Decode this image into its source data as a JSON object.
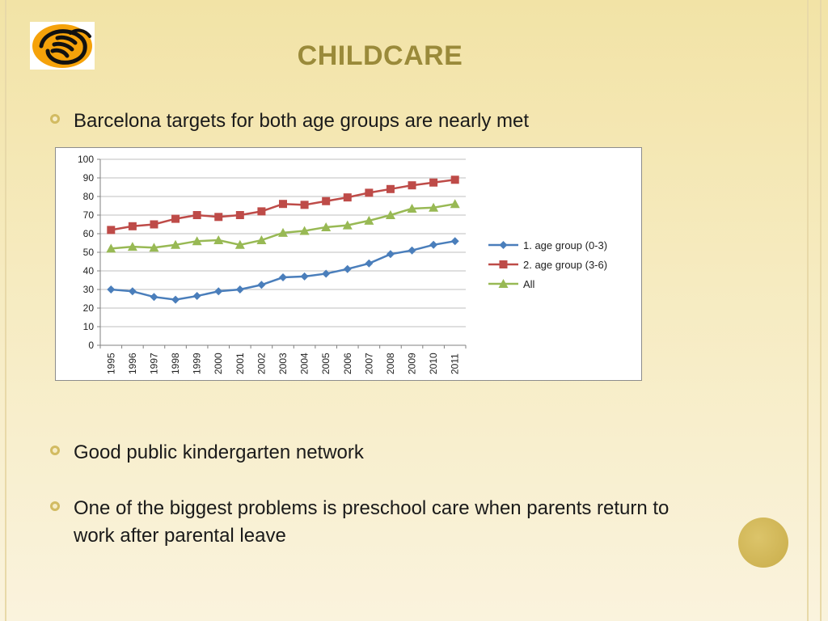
{
  "slide": {
    "title": "CHILDCARE",
    "bullets": [
      "Barcelona targets for both age groups are nearly met",
      "Good public kindergarten network",
      "One of the biggest problems is preschool care when parents return to work after parental leave"
    ]
  },
  "colors": {
    "title": "#9a8a3a",
    "bullet": "#d2bb62",
    "series1": "#4a7ebb",
    "series2": "#be4b48",
    "series3": "#98b954"
  },
  "icons": {
    "logo": "hand-logo-icon"
  },
  "chart_data": {
    "type": "line",
    "title": "",
    "xlabel": "",
    "ylabel": "",
    "ylim": [
      0,
      100
    ],
    "yticks": [
      0,
      10,
      20,
      30,
      40,
      50,
      60,
      70,
      80,
      90,
      100
    ],
    "legend_position": "right",
    "grid": true,
    "categories": [
      "1995",
      "1996",
      "1997",
      "1998",
      "1999",
      "2000",
      "2001",
      "2002",
      "2003",
      "2004",
      "2005",
      "2006",
      "2007",
      "2008",
      "2009",
      "2010",
      "2011"
    ],
    "series": [
      {
        "name": "1. age group (0-3)",
        "color": "#4a7ebb",
        "marker": "diamond",
        "values": [
          30,
          29,
          26,
          24.5,
          26.5,
          29,
          30,
          32.5,
          36.5,
          37,
          38.5,
          41,
          44,
          49,
          51,
          54,
          56
        ]
      },
      {
        "name": "2. age group (3-6)",
        "color": "#be4b48",
        "marker": "square",
        "values": [
          62,
          64,
          65,
          68,
          70,
          69,
          70,
          72,
          76,
          75.5,
          77.5,
          79.5,
          82,
          84,
          86,
          87.5,
          89
        ]
      },
      {
        "name": "All",
        "color": "#98b954",
        "marker": "triangle",
        "values": [
          52,
          53,
          52.5,
          54,
          56,
          56.5,
          54,
          56.5,
          60.5,
          61.5,
          63.5,
          64.5,
          67,
          70,
          73.5,
          74,
          76
        ]
      }
    ]
  }
}
